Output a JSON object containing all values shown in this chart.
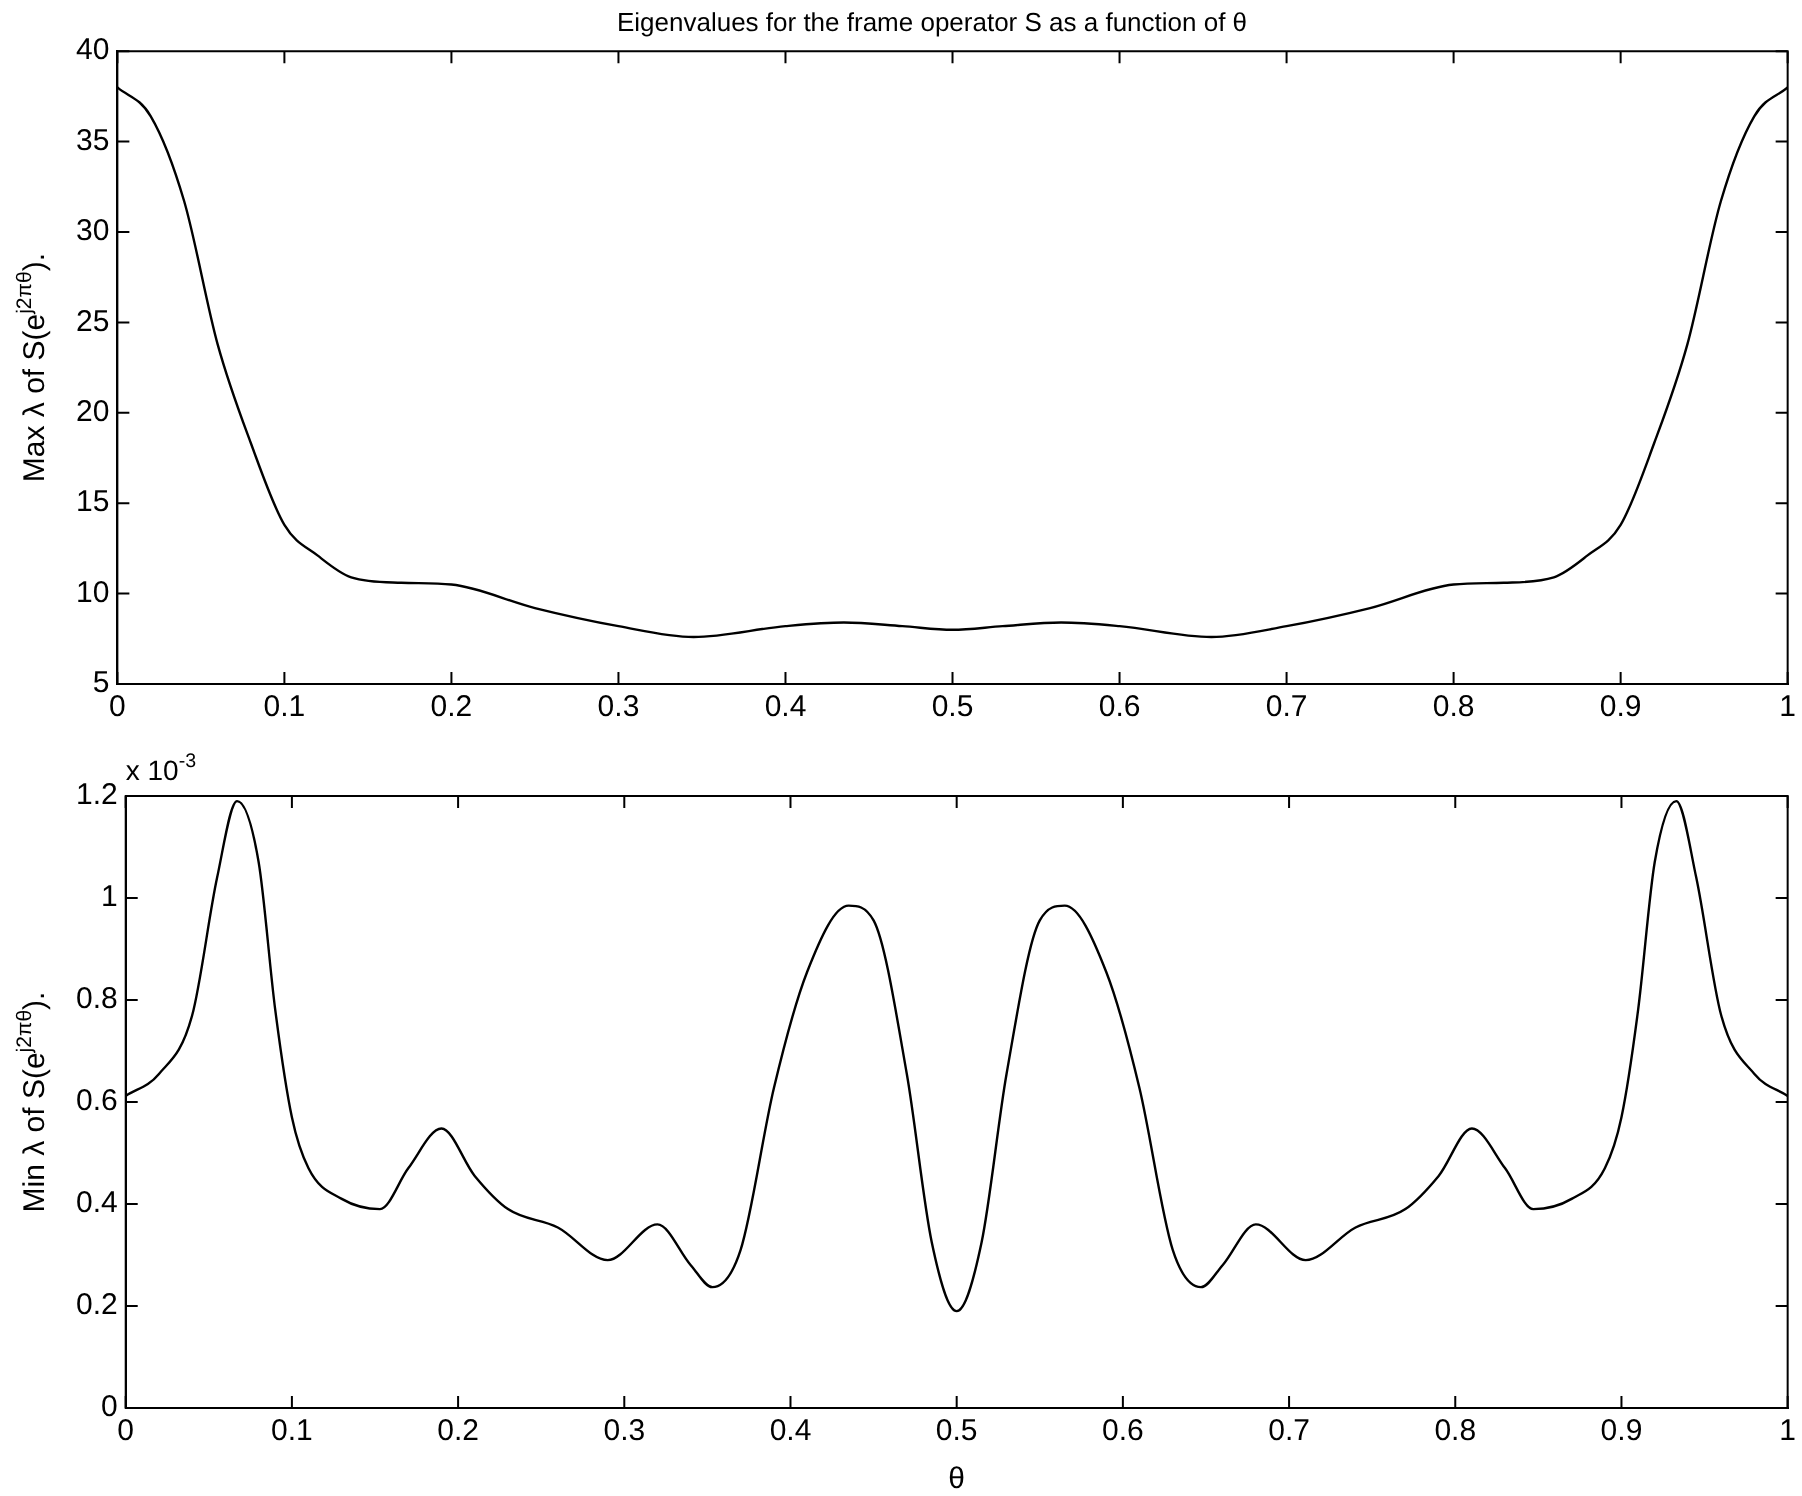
{
  "chart_data": [
    {
      "type": "line",
      "title": "Eigenvalues for the frame operator S as a function of θ",
      "ylabel": "Max λ of S(e$^{j2πθ}$).",
      "series": [
        {
          "color": "#000000",
          "x": [
            0,
            0.02,
            0.04,
            0.06,
            0.08,
            0.1,
            0.12,
            0.14,
            0.17,
            0.2,
            0.25,
            0.3,
            0.345,
            0.4,
            0.435,
            0.47,
            0.5,
            0.53,
            0.565,
            0.6,
            0.655,
            0.7,
            0.75,
            0.8,
            0.83,
            0.86,
            0.88,
            0.9,
            0.92,
            0.94,
            0.96,
            0.98,
            1
          ],
          "values": [
            38,
            36.4,
            31.7,
            23.8,
            18.3,
            13.8,
            12.1,
            10.9,
            10.6,
            10.5,
            9.2,
            8.2,
            7.6,
            8.2,
            8.4,
            8.2,
            8,
            8.2,
            8.4,
            8.2,
            7.6,
            8.2,
            9.2,
            10.5,
            10.6,
            10.9,
            12.1,
            13.8,
            18.3,
            23.8,
            31.7,
            36.4,
            38
          ]
        }
      ],
      "xlim": [
        0,
        1
      ],
      "xticks": [
        0,
        0.1,
        0.2,
        0.3,
        0.4,
        0.5,
        0.6,
        0.7,
        0.8,
        0.9,
        1
      ],
      "ylim": [
        5,
        40
      ],
      "yticks": [
        5,
        10,
        15,
        20,
        25,
        30,
        35,
        40
      ],
      "grid": false,
      "legend": false,
      "marker": "none",
      "line_style": "solid"
    },
    {
      "type": "line",
      "xlabel": "θ",
      "ylabel": "Min λ of S(e$^{j2πθ}$).",
      "annotations": [
        "x 10$^{-3}$"
      ],
      "series": [
        {
          "color": "#000000",
          "x": [
            0,
            0.02,
            0.04,
            0.055,
            0.067,
            0.08,
            0.09,
            0.1,
            0.11,
            0.13,
            0.153,
            0.17,
            0.19,
            0.21,
            0.23,
            0.26,
            0.29,
            0.32,
            0.34,
            0.353,
            0.37,
            0.39,
            0.41,
            0.435,
            0.45,
            0.47,
            0.485,
            0.5,
            0.515,
            0.53,
            0.55,
            0.565,
            0.59,
            0.61,
            0.63,
            0.647,
            0.66,
            0.68,
            0.71,
            0.74,
            0.77,
            0.79,
            0.81,
            0.83,
            0.847,
            0.87,
            0.89,
            0.9,
            0.91,
            0.92,
            0.933,
            0.945,
            0.96,
            0.98,
            1
          ],
          "values": [
            0.612,
            0.655,
            0.77,
            1.04,
            1.19,
            1.07,
            0.78,
            0.57,
            0.47,
            0.41,
            0.39,
            0.47,
            0.548,
            0.455,
            0.39,
            0.354,
            0.29,
            0.36,
            0.28,
            0.237,
            0.31,
            0.627,
            0.855,
            0.985,
            0.956,
            0.655,
            0.325,
            0.19,
            0.325,
            0.655,
            0.956,
            0.985,
            0.855,
            0.627,
            0.31,
            0.237,
            0.28,
            0.36,
            0.29,
            0.354,
            0.39,
            0.455,
            0.548,
            0.47,
            0.39,
            0.41,
            0.47,
            0.57,
            0.78,
            1.07,
            1.19,
            1.04,
            0.77,
            0.655,
            0.612
          ]
        }
      ],
      "xlim": [
        0,
        1
      ],
      "xticks": [
        0,
        0.1,
        0.2,
        0.3,
        0.4,
        0.5,
        0.6,
        0.7,
        0.8,
        0.9,
        1
      ],
      "ylim": [
        0,
        1.2
      ],
      "yticks": [
        0,
        0.2,
        0.4,
        0.6,
        0.8,
        1,
        1.2
      ],
      "grid": false,
      "legend": false,
      "marker": "none",
      "line_style": "solid"
    }
  ]
}
